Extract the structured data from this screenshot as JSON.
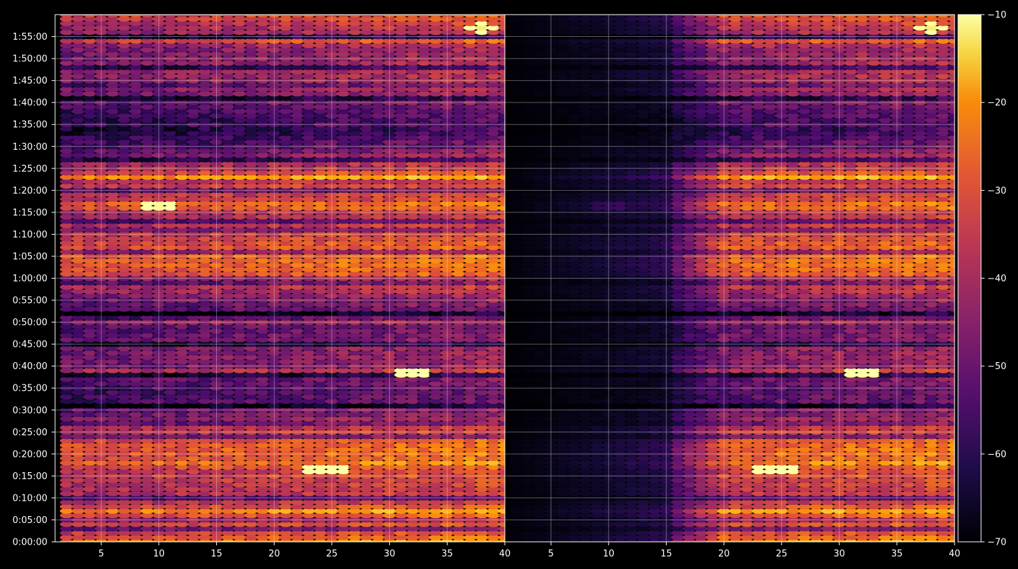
{
  "chart_data": [
    {
      "panel": "left",
      "type": "heatmap",
      "marker": "ellipse",
      "title": "",
      "xlabel": "",
      "ylabel": "",
      "xlim": [
        1,
        40
      ],
      "ylim_seconds": [
        0,
        7200
      ],
      "x_ticks": [
        "5",
        "10",
        "15",
        "20",
        "25",
        "30",
        "35",
        "40"
      ],
      "y_ticks": [
        "0:00:00",
        "0:05:00",
        "0:10:00",
        "0:15:00",
        "0:20:00",
        "0:25:00",
        "0:30:00",
        "0:35:00",
        "0:40:00",
        "0:45:00",
        "0:50:00",
        "0:55:00",
        "1:00:00",
        "1:05:00",
        "1:10:00",
        "1:15:00",
        "1:20:00",
        "1:25:00",
        "1:30:00",
        "1:35:00",
        "1:40:00",
        "1:45:00",
        "1:50:00",
        "1:55:00"
      ],
      "grid": true,
      "x_values": [
        2,
        40
      ],
      "y_sample_interval_seconds": 60,
      "value_range": [
        -70,
        -10
      ],
      "bright_rows_seconds": [
        0,
        420,
        1020,
        2310,
        2970,
        4590,
        4980,
        5630,
        6850
      ],
      "hotspots": [
        {
          "x": 24.5,
          "time": "0:16:30",
          "value": -12
        },
        {
          "x": 32.3,
          "time": "0:38:30",
          "value": -13
        },
        {
          "x": 10,
          "time": "1:16:30",
          "value": -14
        },
        {
          "x": 38,
          "time": "1:57:00",
          "value": -13
        }
      ]
    },
    {
      "panel": "right",
      "type": "heatmap",
      "marker": "ellipse",
      "title": "",
      "xlabel": "",
      "ylabel": "",
      "xlim": [
        1,
        40
      ],
      "ylim_seconds": [
        0,
        7200
      ],
      "x_ticks": [
        "5",
        "10",
        "15",
        "20",
        "25",
        "30",
        "35",
        "40"
      ],
      "grid": true,
      "x_values": [
        2,
        40
      ],
      "dark_region_x": [
        1,
        15
      ],
      "value_range": [
        -70,
        -10
      ]
    }
  ],
  "colorbar": {
    "colormap": "inferno",
    "range": [
      -70,
      -10
    ],
    "ticks": [
      "−10",
      "−20",
      "−30",
      "−40",
      "−50",
      "−60",
      "−70"
    ]
  },
  "colors": {
    "background": "#000000",
    "grid": "#ffffff",
    "text": "#ffffff"
  }
}
